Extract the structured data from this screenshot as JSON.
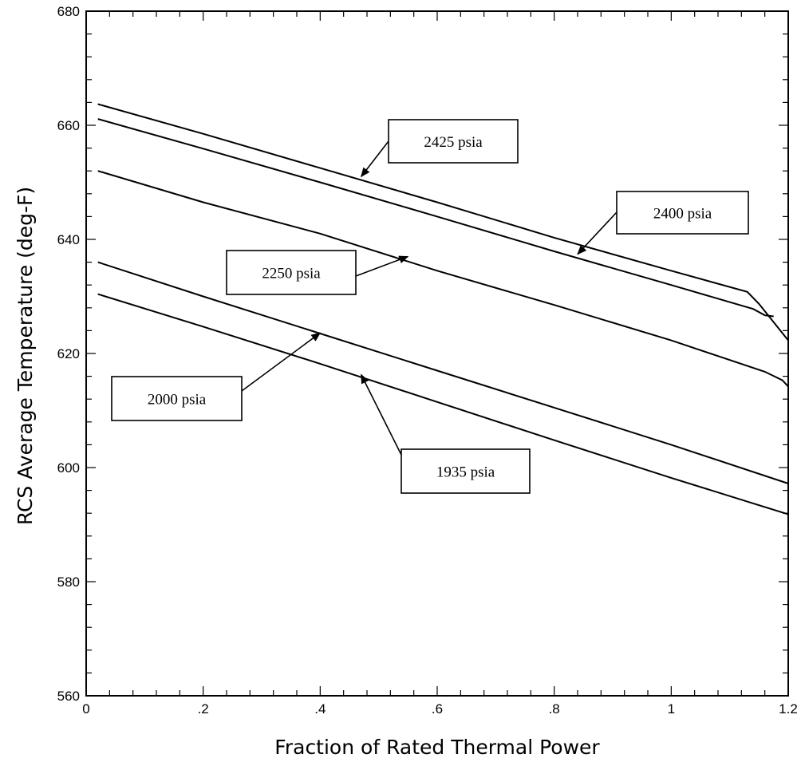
{
  "chart_data": {
    "type": "line",
    "title": "",
    "xlabel": "Fraction of Rated Thermal Power",
    "ylabel": "RCS Average Temperature (deg-F)",
    "xlim": [
      0,
      1.2
    ],
    "ylim": [
      560,
      680
    ],
    "x_ticks": [
      0,
      0.2,
      0.4,
      0.6,
      0.8,
      1.0,
      1.2
    ],
    "x_tick_labels": [
      "0",
      ".2",
      ".4",
      ".6",
      ".8",
      "1",
      "1.2"
    ],
    "y_ticks": [
      560,
      580,
      600,
      620,
      640,
      660,
      680
    ],
    "y_tick_labels": [
      "560",
      "580",
      "600",
      "620",
      "640",
      "660",
      "680"
    ],
    "grid": false,
    "series": [
      {
        "name": "2425 psia",
        "x": [
          0.02,
          0.2,
          0.4,
          0.6,
          0.8,
          1.0,
          1.13,
          1.15,
          1.2
        ],
        "y": [
          663.7,
          658.5,
          652.5,
          646.5,
          640.3,
          634.5,
          630.8,
          628.7,
          622.3
        ]
      },
      {
        "name": "2400 psia",
        "x": [
          0.02,
          0.2,
          0.4,
          0.6,
          0.8,
          1.0,
          1.14,
          1.16,
          1.175
        ],
        "y": [
          661.1,
          655.9,
          650.0,
          644.0,
          637.9,
          632.0,
          627.8,
          626.7,
          626.5
        ]
      },
      {
        "name": "2250 psia",
        "x": [
          0.02,
          0.2,
          0.4,
          0.6,
          0.8,
          1.0,
          1.16,
          1.19,
          1.2
        ],
        "y": [
          652.0,
          646.5,
          641.0,
          634.5,
          628.5,
          622.3,
          616.8,
          615.3,
          614.2
        ]
      },
      {
        "name": "2000 psia",
        "x": [
          0.02,
          0.2,
          0.4,
          0.6,
          0.8,
          1.0,
          1.2
        ],
        "y": [
          636.0,
          630.0,
          623.5,
          617.0,
          610.5,
          604.0,
          597.2
        ]
      },
      {
        "name": "1935 psia",
        "x": [
          0.02,
          0.2,
          0.4,
          0.6,
          0.8,
          1.0,
          1.2
        ],
        "y": [
          630.4,
          624.7,
          618.2,
          611.5,
          604.8,
          598.2,
          591.8
        ]
      }
    ],
    "annotations": [
      {
        "text": "2425 psia",
        "points_to": [
          0.47,
          651
        ]
      },
      {
        "text": "2400 psia",
        "points_to": [
          0.84,
          637.4
        ]
      },
      {
        "text": "2250 psia",
        "points_to": [
          0.55,
          637
        ]
      },
      {
        "text": "2000 psia",
        "points_to": [
          0.4,
          623.6
        ]
      },
      {
        "text": "1935 psia",
        "points_to": [
          0.47,
          616.3
        ]
      }
    ]
  }
}
